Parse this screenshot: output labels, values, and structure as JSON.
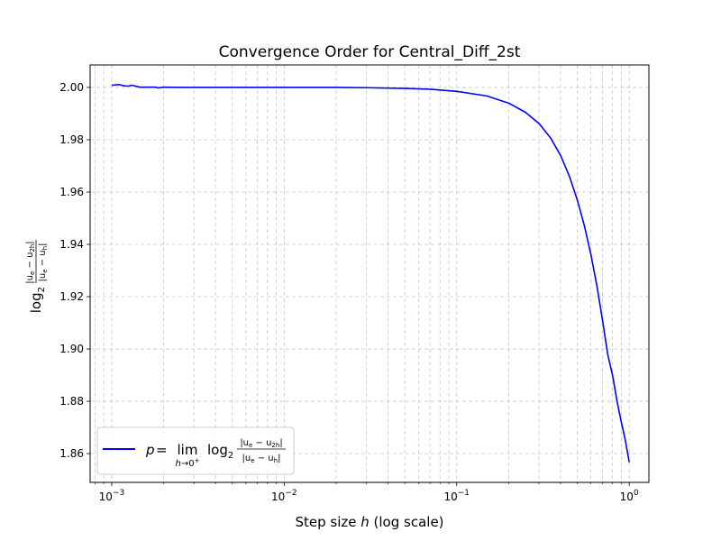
{
  "chart_data": {
    "type": "line",
    "title": "Convergence Order for Central_Diff_2st",
    "xlabel": "Step size h (log scale)",
    "ylabel": "log2 |ue − u2h| / |ue − uh|",
    "x_scale": "log",
    "xlim": [
      0.00075,
      1.3
    ],
    "ylim": [
      1.849,
      2.0086
    ],
    "x_ticks": [
      {
        "value": 0.001,
        "label": "10−3"
      },
      {
        "value": 0.01,
        "label": "10−2"
      },
      {
        "value": 0.1,
        "label": "10−1"
      },
      {
        "value": 1,
        "label": "10°0"
      }
    ],
    "y_ticks": [
      {
        "value": 1.86,
        "label": "1.86"
      },
      {
        "value": 1.88,
        "label": "1.88"
      },
      {
        "value": 1.9,
        "label": "1.90"
      },
      {
        "value": 1.92,
        "label": "1.92"
      },
      {
        "value": 1.94,
        "label": "1.94"
      },
      {
        "value": 1.96,
        "label": "1.96"
      },
      {
        "value": 1.98,
        "label": "1.98"
      },
      {
        "value": 2.0,
        "label": "2.00"
      }
    ],
    "grid": "major and minor, dashed",
    "legend_position": "lower-left",
    "series": [
      {
        "name": "p = lim h→0+ log2 |ue − u2h| / |ue − uh|",
        "color": "#0000ff",
        "x": [
          0.001,
          0.0011,
          0.00118,
          0.00125,
          0.0013,
          0.00138,
          0.00145,
          0.0016,
          0.0018,
          0.00185,
          0.002,
          0.0025,
          0.003,
          0.005,
          0.01,
          0.02,
          0.03,
          0.05,
          0.07,
          0.1,
          0.15,
          0.2,
          0.25,
          0.3,
          0.35,
          0.4,
          0.45,
          0.5,
          0.55,
          0.6,
          0.65,
          0.7,
          0.75,
          0.8,
          0.85,
          0.9,
          0.95,
          1.0
        ],
        "y": [
          2.0008,
          2.0011,
          2.0006,
          2.0005,
          2.0008,
          2.0005,
          2.0001,
          2.0001,
          2.0001,
          1.9998,
          2.0001,
          2.0,
          2.0,
          2.0,
          2.0,
          2.0,
          1.9999,
          1.9996,
          1.9993,
          1.9985,
          1.9967,
          1.994,
          1.9905,
          1.9862,
          1.9807,
          1.974,
          1.966,
          1.957,
          1.947,
          1.936,
          1.924,
          1.911,
          1.898,
          1.89,
          1.88,
          1.872,
          1.865,
          1.8567
        ]
      }
    ]
  }
}
